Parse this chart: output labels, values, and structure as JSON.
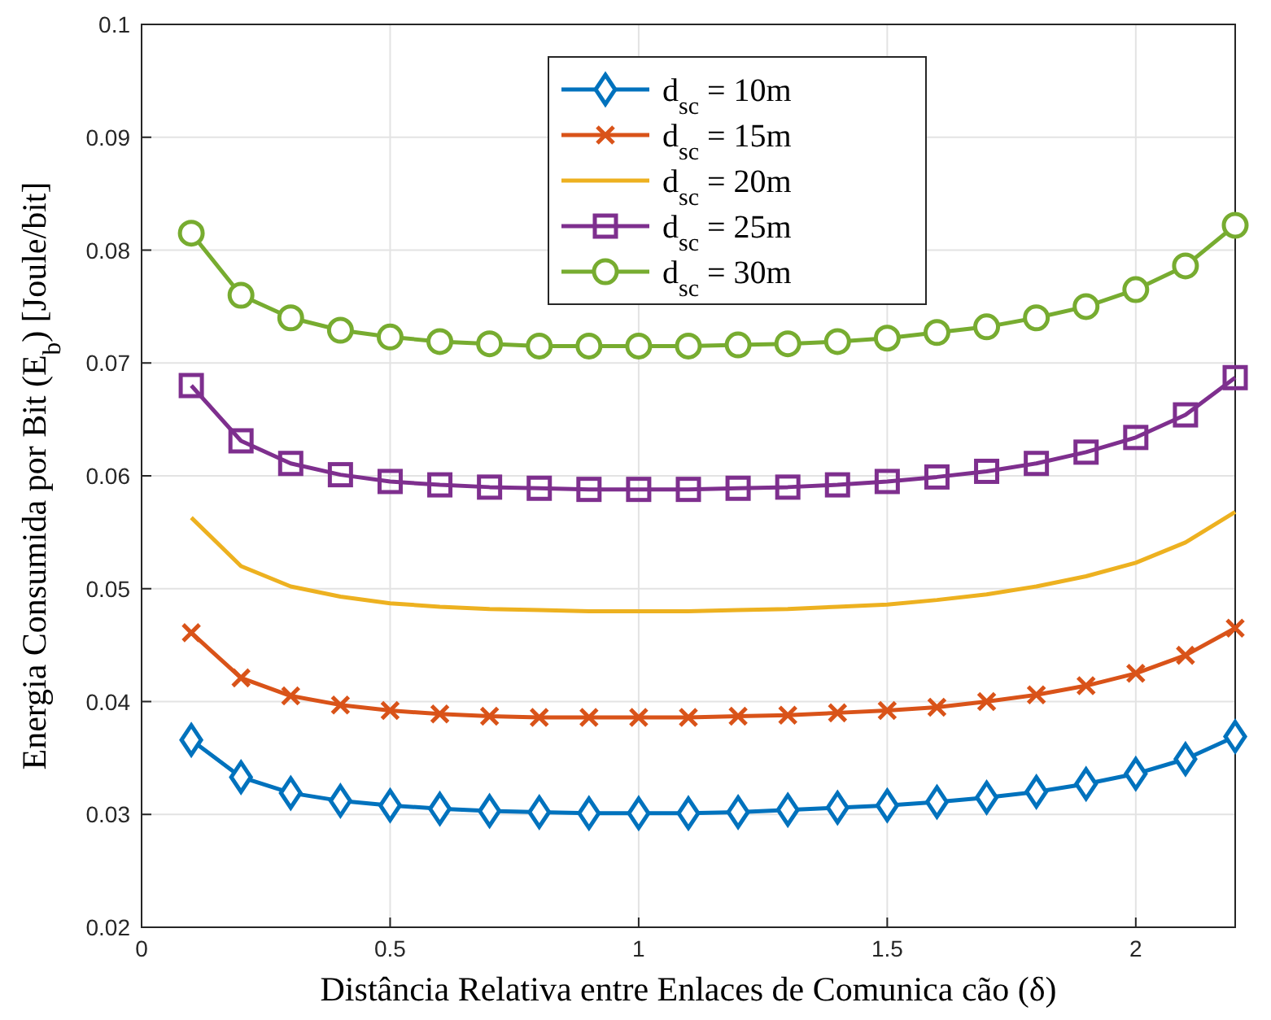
{
  "chart_data": {
    "type": "line",
    "xlabel": "Distância Relativa entre Enlaces de Comunica cão (δ)",
    "ylabel": "Energia Consumida por Bit (E$_{b}$) [Joule/bit]",
    "x": [
      0.1,
      0.2,
      0.3,
      0.4,
      0.5,
      0.6,
      0.7,
      0.8,
      0.9,
      1.0,
      1.1,
      1.2,
      1.3,
      1.4,
      1.5,
      1.6,
      1.7,
      1.8,
      1.9,
      2.0,
      2.1,
      2.2
    ],
    "xlim": [
      0,
      2.2
    ],
    "xticks": [
      0,
      0.5,
      1,
      1.5,
      2
    ],
    "ylim": [
      0.02,
      0.1
    ],
    "yticks": [
      0.02,
      0.03,
      0.04,
      0.05,
      0.06,
      0.07,
      0.08,
      0.09,
      0.1
    ],
    "grid": true,
    "legend": "top",
    "line_style": "solid",
    "series": [
      {
        "name": "d$_{sc}$ = 10m",
        "color": "#0072bd",
        "marker": "diamond",
        "values": [
          0.0366,
          0.0333,
          0.0319,
          0.0312,
          0.0308,
          0.0305,
          0.0303,
          0.0302,
          0.0301,
          0.0301,
          0.0301,
          0.0302,
          0.0304,
          0.0306,
          0.0308,
          0.0311,
          0.0315,
          0.032,
          0.0327,
          0.0336,
          0.0349,
          0.0369
        ]
      },
      {
        "name": "d$_{sc}$ = 15m",
        "color": "#d95319",
        "marker": "cross",
        "values": [
          0.0461,
          0.0421,
          0.0405,
          0.0397,
          0.0392,
          0.0389,
          0.0387,
          0.0386,
          0.0386,
          0.0386,
          0.0386,
          0.0387,
          0.0388,
          0.039,
          0.0392,
          0.0395,
          0.04,
          0.0406,
          0.0414,
          0.0425,
          0.0441,
          0.0465
        ]
      },
      {
        "name": "d$_{sc}$ = 20m",
        "color": "#edb120",
        "marker": "none",
        "values": [
          0.0563,
          0.052,
          0.0502,
          0.0493,
          0.0487,
          0.0484,
          0.0482,
          0.0481,
          0.048,
          0.048,
          0.048,
          0.0481,
          0.0482,
          0.0484,
          0.0486,
          0.049,
          0.0495,
          0.0502,
          0.0511,
          0.0523,
          0.0541,
          0.0568
        ]
      },
      {
        "name": "d$_{sc}$ = 25m",
        "color": "#7e2f8e",
        "marker": "square",
        "values": [
          0.068,
          0.0631,
          0.0611,
          0.0601,
          0.0595,
          0.0592,
          0.059,
          0.0589,
          0.0588,
          0.0588,
          0.0588,
          0.0589,
          0.059,
          0.0592,
          0.0595,
          0.0599,
          0.0604,
          0.0611,
          0.0621,
          0.0634,
          0.0654,
          0.0687
        ]
      },
      {
        "name": "d$_{sc}$ = 30m",
        "color": "#77ac30",
        "marker": "circle",
        "values": [
          0.0815,
          0.076,
          0.074,
          0.0729,
          0.0723,
          0.0719,
          0.0717,
          0.0715,
          0.0715,
          0.0715,
          0.0715,
          0.0716,
          0.0717,
          0.0719,
          0.0722,
          0.0727,
          0.0732,
          0.074,
          0.075,
          0.0765,
          0.0786,
          0.0822
        ]
      }
    ]
  }
}
